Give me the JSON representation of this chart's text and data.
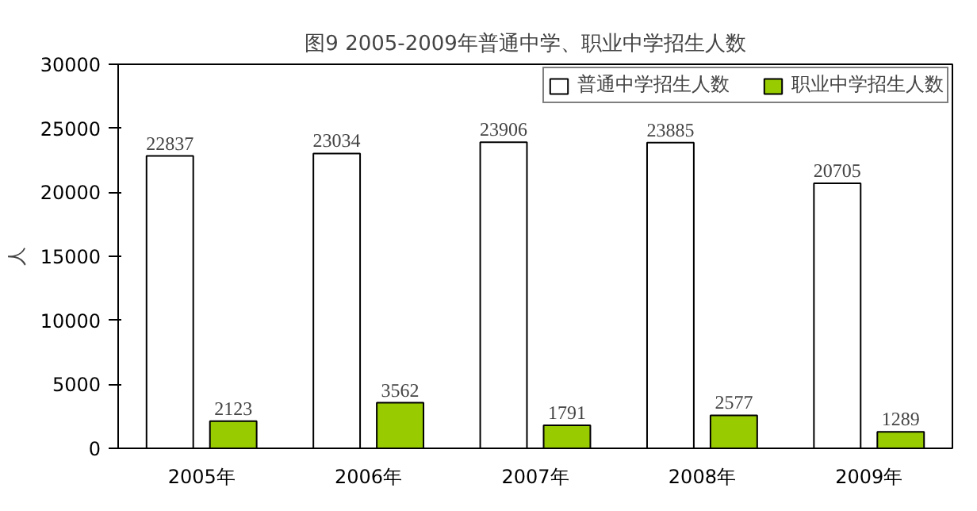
{
  "chart_data": {
    "type": "bar",
    "title": "图9    2005-2009年普通中学、职业中学招生人数",
    "ylabel": "人",
    "categories": [
      "2005年",
      "2006年",
      "2007年",
      "2008年",
      "2009年"
    ],
    "series": [
      {
        "name": "普通中学招生人数",
        "color": "#ffffff",
        "values": [
          22837,
          23034,
          23906,
          23885,
          20705
        ]
      },
      {
        "name": "职业中学招生人数",
        "color": "#99cc00",
        "values": [
          2123,
          3562,
          1791,
          2577,
          1289
        ]
      }
    ],
    "ylim": [
      0,
      30000
    ],
    "yticks": [
      0,
      5000,
      10000,
      15000,
      20000,
      25000,
      30000
    ],
    "grid": false,
    "legend": "top",
    "data_labels": true
  }
}
